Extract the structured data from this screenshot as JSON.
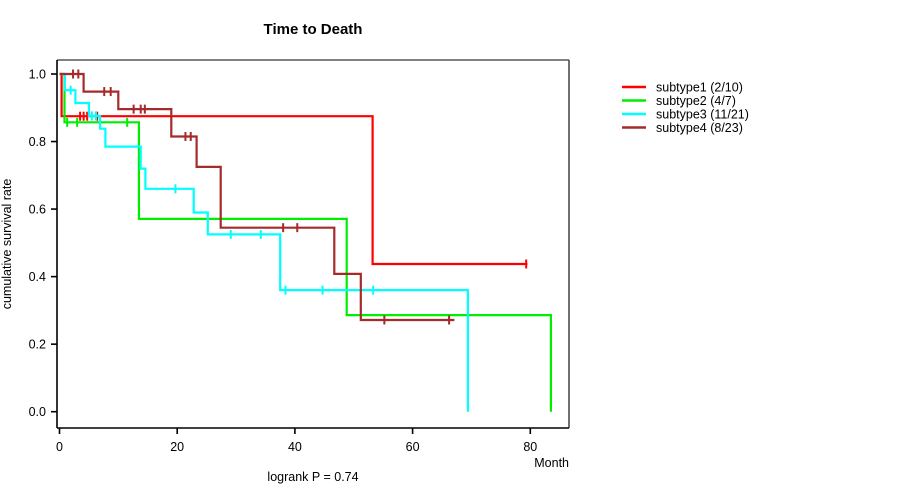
{
  "page": {
    "background": "#ffffff"
  },
  "chart_data": {
    "type": "line",
    "subtype": "kaplan-meier-step-survival",
    "title": "Time to Death",
    "xlabel": "Month",
    "ylabel": "cumulative survival rate",
    "footnote": "logrank P = 0.74",
    "x_ticks": [
      0,
      20,
      40,
      60,
      80
    ],
    "y_ticks": [
      "0.0",
      "0.2",
      "0.4",
      "0.6",
      "0.8",
      "1.0"
    ],
    "xlim": [
      0,
      86.6
    ],
    "ylim": [
      0,
      1.0
    ],
    "grid": false,
    "legend_position": "right",
    "axis_color": "#000000",
    "box_top_color": "#808080",
    "box_right_color": "#4d4d4d",
    "series": [
      {
        "name": "subtype1 (2/10)",
        "color": "#ff0000",
        "steps": [
          [
            0,
            1.0
          ],
          [
            0.35,
            1.0
          ],
          [
            0.35,
            0.875
          ],
          [
            53.2,
            0.875
          ],
          [
            53.2,
            0.4375
          ],
          [
            79.5,
            0.4375
          ]
        ],
        "censor_ticks": [
          [
            3.5,
            0.875
          ],
          [
            4.1,
            0.875
          ],
          [
            4.7,
            0.875
          ],
          [
            6.4,
            0.875
          ],
          [
            79.3,
            0.4375
          ]
        ]
      },
      {
        "name": "subtype2 (4/7)",
        "color": "#00ee00",
        "steps": [
          [
            0,
            1.0
          ],
          [
            0.85,
            1.0
          ],
          [
            0.85,
            0.857
          ],
          [
            13.5,
            0.857
          ],
          [
            13.5,
            0.571
          ],
          [
            48.8,
            0.571
          ],
          [
            48.8,
            0.286
          ],
          [
            83.5,
            0.286
          ],
          [
            83.5,
            0.0
          ]
        ],
        "censor_ticks": [
          [
            1.3,
            0.857
          ],
          [
            3.0,
            0.857
          ],
          [
            11.5,
            0.857
          ]
        ]
      },
      {
        "name": "subtype3 (11/21)",
        "color": "#00ffff",
        "steps": [
          [
            0,
            1.0
          ],
          [
            0.9,
            1.0
          ],
          [
            0.9,
            0.952
          ],
          [
            2.7,
            0.952
          ],
          [
            2.7,
            0.914
          ],
          [
            5.0,
            0.914
          ],
          [
            5.0,
            0.876
          ],
          [
            6.9,
            0.876
          ],
          [
            6.9,
            0.838
          ],
          [
            7.8,
            0.838
          ],
          [
            7.8,
            0.785
          ],
          [
            13.8,
            0.785
          ],
          [
            13.8,
            0.72
          ],
          [
            14.6,
            0.72
          ],
          [
            14.6,
            0.66
          ],
          [
            22.8,
            0.66
          ],
          [
            22.8,
            0.59
          ],
          [
            25.2,
            0.59
          ],
          [
            25.2,
            0.525
          ],
          [
            37.5,
            0.525
          ],
          [
            37.5,
            0.36
          ],
          [
            69.4,
            0.36
          ],
          [
            69.4,
            0.0
          ]
        ],
        "censor_ticks": [
          [
            1.9,
            0.952
          ],
          [
            5.5,
            0.876
          ],
          [
            6.2,
            0.876
          ],
          [
            19.7,
            0.66
          ],
          [
            29.1,
            0.525
          ],
          [
            34.2,
            0.525
          ],
          [
            38.4,
            0.36
          ],
          [
            44.7,
            0.36
          ],
          [
            53.3,
            0.36
          ]
        ]
      },
      {
        "name": "subtype4 (8/23)",
        "color": "#a52a2a",
        "steps": [
          [
            0,
            1.0
          ],
          [
            4.1,
            1.0
          ],
          [
            4.1,
            0.948
          ],
          [
            10.0,
            0.948
          ],
          [
            10.0,
            0.896
          ],
          [
            19.0,
            0.896
          ],
          [
            19.0,
            0.815
          ],
          [
            23.3,
            0.815
          ],
          [
            23.3,
            0.725
          ],
          [
            27.4,
            0.725
          ],
          [
            27.4,
            0.545
          ],
          [
            46.7,
            0.545
          ],
          [
            46.7,
            0.408
          ],
          [
            51.2,
            0.408
          ],
          [
            51.2,
            0.2715
          ],
          [
            67.1,
            0.2715
          ]
        ],
        "censor_ticks": [
          [
            2.3,
            1.0
          ],
          [
            3.2,
            1.0
          ],
          [
            7.6,
            0.948
          ],
          [
            8.7,
            0.948
          ],
          [
            12.6,
            0.896
          ],
          [
            13.8,
            0.896
          ],
          [
            14.5,
            0.896
          ],
          [
            21.4,
            0.815
          ],
          [
            22.3,
            0.815
          ],
          [
            38.0,
            0.545
          ],
          [
            40.4,
            0.545
          ],
          [
            55.2,
            0.2715
          ],
          [
            66.2,
            0.2715
          ]
        ]
      }
    ],
    "legend": {
      "items": [
        {
          "label": "subtype1 (2/10)",
          "color": "#ff0000"
        },
        {
          "label": "subtype2 (4/7)",
          "color": "#00ee00"
        },
        {
          "label": "subtype3 (11/21)",
          "color": "#00ffff"
        },
        {
          "label": "subtype4 (8/23)",
          "color": "#a52a2a"
        }
      ]
    }
  }
}
